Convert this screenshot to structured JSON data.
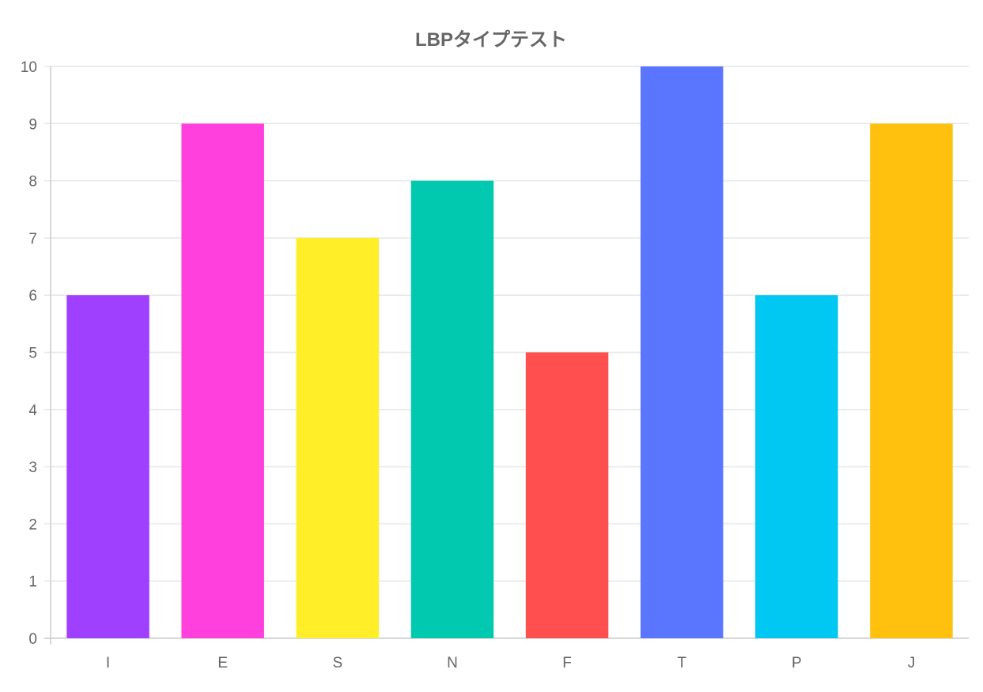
{
  "chart_data": {
    "type": "bar",
    "title": "LBPタイプテスト",
    "categories": [
      "I",
      "E",
      "S",
      "N",
      "F",
      "T",
      "P",
      "J"
    ],
    "values": [
      6,
      9,
      7,
      8,
      5,
      10,
      6,
      9
    ],
    "colors": [
      "#a040ff",
      "#ff40dd",
      "#ffee28",
      "#00c9b0",
      "#ff4f4f",
      "#5a76ff",
      "#00c8f2",
      "#ffc10d"
    ],
    "ylim": [
      0,
      10
    ],
    "yticks": [
      "0",
      "1",
      "2",
      "3",
      "4",
      "5",
      "6",
      "7",
      "8",
      "9",
      "10"
    ],
    "grid": true,
    "legend": "none",
    "xlabel": "",
    "ylabel": ""
  }
}
